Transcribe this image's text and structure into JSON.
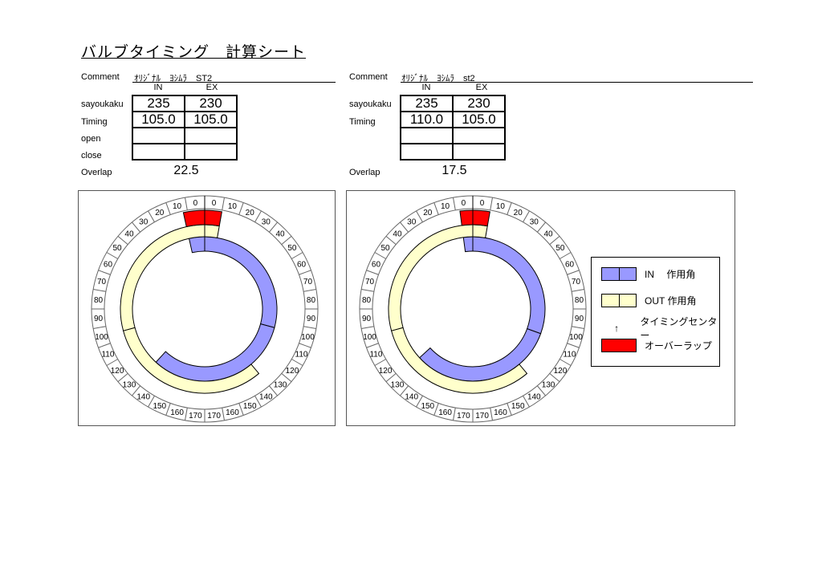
{
  "title": "バルブタイミング　計算シート",
  "labels": {
    "comment": "Comment",
    "in": "IN",
    "ex": "EX",
    "sayoukaku": "sayoukaku",
    "timing": "Timing",
    "open": "open",
    "close": "close",
    "overlap": "Overlap"
  },
  "sheets": [
    {
      "comment": "ｵﾘｼﾞﾅﾙ　ﾖｼﾑﾗ　ST2",
      "in": {
        "sayoukaku": "235",
        "timing": "105.0",
        "open": "",
        "close": ""
      },
      "ex": {
        "sayoukaku": "230",
        "timing": "105.0",
        "open": "",
        "close": ""
      },
      "overlap": "22.5"
    },
    {
      "comment": "ｵﾘｼﾞﾅﾙ　ﾖｼﾑﾗ　st2",
      "in": {
        "sayoukaku": "235",
        "timing": "110.0"
      },
      "ex": {
        "sayoukaku": "230",
        "timing": "105.0"
      },
      "overlap": "17.5"
    }
  ],
  "diagrams": [
    {
      "in_duration": 235,
      "in_timing": 105,
      "ex_duration": 230,
      "ex_timing": 105
    },
    {
      "in_duration": 235,
      "in_timing": 110,
      "ex_duration": 230,
      "ex_timing": 105
    }
  ],
  "scale_labels": [
    "0",
    "10",
    "20",
    "30",
    "40",
    "50",
    "60",
    "70",
    "80",
    "90",
    "100",
    "110",
    "120",
    "130",
    "140",
    "150",
    "160",
    "170"
  ],
  "legend": {
    "in": "IN　 作用角",
    "out": "OUT 作用角",
    "center_icon": "↑",
    "center": "タイミングセンター",
    "overlap": "オーバーラップ"
  },
  "colors": {
    "in": "#9999ff",
    "ex": "#ffffcc",
    "overlap": "#ff0000"
  }
}
